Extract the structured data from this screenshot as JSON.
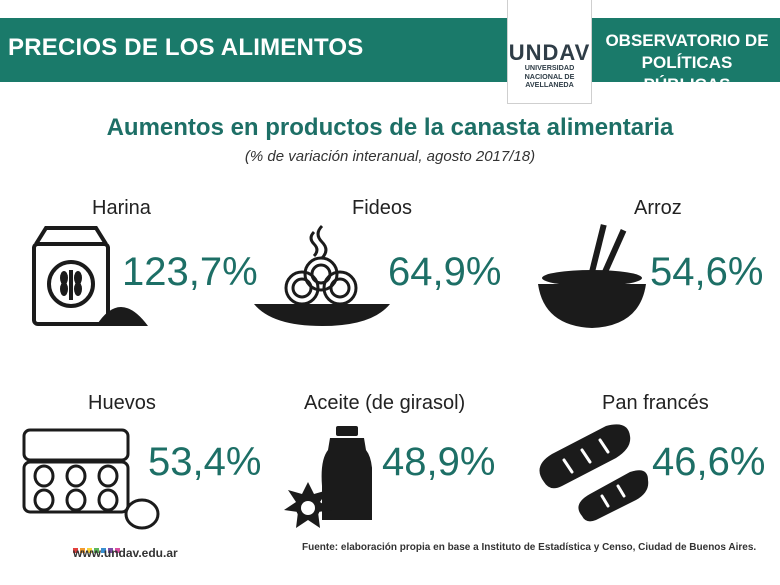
{
  "header": {
    "title": "PRECIOS DE LOS ALIMENTOS",
    "logo_word": "UNDAV",
    "logo_sub": "UNIVERSIDAD NACIONAL DE AVELLANEDA",
    "observatory_line1": "OBSERVATORIO DE",
    "observatory_line2": "POLÍTICAS PÚBLICAS"
  },
  "colors": {
    "band": "#1a7a6a",
    "value": "#1d6f66",
    "icon": "#1b1b1b"
  },
  "chart_data": {
    "type": "table",
    "title": "Aumentos en productos de la canasta alimentaria",
    "subtitle": "(% de variación interanual, agosto 2017/18)",
    "categories": [
      "Harina",
      "Fideos",
      "Arroz",
      "Huevos",
      "Aceite (de girasol)",
      "Pan francés"
    ],
    "values": [
      123.7,
      64.9,
      54.6,
      53.4,
      48.9,
      46.6
    ],
    "value_labels": [
      "123,7%",
      "64,9%",
      "54,6%",
      "53,4%",
      "48,9%",
      "46,6%"
    ],
    "icons": [
      "flour-sack-icon",
      "pasta-plate-icon",
      "rice-bowl-icon",
      "egg-carton-icon",
      "oil-bottle-icon",
      "bread-icon"
    ]
  },
  "footer": {
    "url": "www.undav.edu.ar",
    "source": "Fuente: elaboración propia en base a Instituto de Estadística y Censo, Ciudad de Buenos Aires.",
    "dot_colors": [
      "#e2403d",
      "#f29a2e",
      "#f6d23a",
      "#5cb85c",
      "#3a8fd0",
      "#7b4fa8",
      "#d94fa0"
    ]
  }
}
